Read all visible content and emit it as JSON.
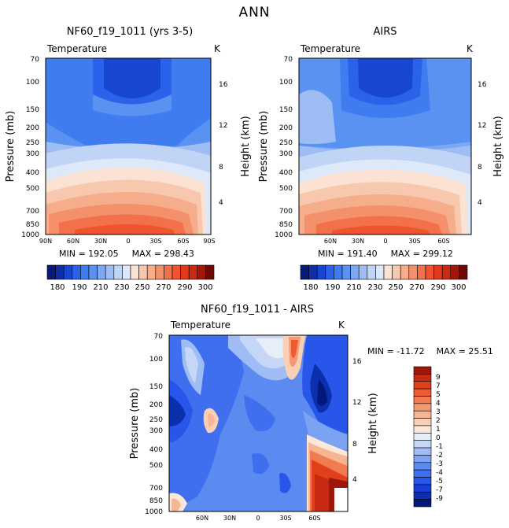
{
  "figure_title": "ANN",
  "colors": {
    "frame": "#000000",
    "temp_scale": [
      "#0a1a78",
      "#0f2fa8",
      "#1747d0",
      "#2a63ea",
      "#3f7cf0",
      "#5a92f2",
      "#7ba7f3",
      "#9dbdf4",
      "#c0d4f6",
      "#dde8f8",
      "#fbe2d2",
      "#f8c8ae",
      "#f6ad8c",
      "#f4906a",
      "#f2714b",
      "#ef5330",
      "#e3391c",
      "#c82b12",
      "#a0180a",
      "#6e0a05"
    ],
    "diff_scale": [
      "#03187a",
      "#0c2fae",
      "#173fd8",
      "#2856ea",
      "#3f6fee",
      "#5b8af0",
      "#7ca3f2",
      "#a0bcf4",
      "#c6d6f7",
      "#e6eef9",
      "#fce7d8",
      "#f9cfb5",
      "#f7b594",
      "#f49a73",
      "#f17c51",
      "#ee5b30",
      "#e0401b",
      "#c62b12",
      "#9e1609"
    ]
  },
  "chart_data": [
    {
      "type": "contour",
      "title": "NF60_f19_1011 (yrs 3-5)",
      "left_label": "Temperature",
      "right_label": "K",
      "ylabel": "Pressure (mb)",
      "y2label": "Height (km)",
      "xticks": [
        "90N",
        "60N",
        "30N",
        "0",
        "30S",
        "60S",
        "90S"
      ],
      "yticks": [
        "70",
        "100",
        "150",
        "200",
        "250",
        "300",
        "400",
        "500",
        "700",
        "850",
        "1000"
      ],
      "y2ticks": [
        "16",
        "12",
        "8",
        "4"
      ],
      "min_label": "MIN = 192.05",
      "max_label": "MAX = 298.43"
    },
    {
      "type": "contour",
      "title": "AIRS",
      "left_label": "Temperature",
      "right_label": "K",
      "ylabel": "Pressure (mb)",
      "y2label": "Height (km)",
      "xticks": [
        "60N",
        "30N",
        "0",
        "30S",
        "60S"
      ],
      "yticks": [
        "70",
        "100",
        "150",
        "200",
        "250",
        "300",
        "400",
        "500",
        "700",
        "850",
        "1000"
      ],
      "y2ticks": [
        "16",
        "12",
        "8",
        "4"
      ],
      "min_label": "MIN = 191.40",
      "max_label": "MAX = 299.12"
    },
    {
      "type": "contour",
      "title": "NF60_f19_1011 - AIRS",
      "left_label": "Temperature",
      "right_label": "K",
      "ylabel": "Pressure (mb)",
      "y2label": "Height (km)",
      "xticks": [
        "60N",
        "30N",
        "0",
        "30S",
        "60S"
      ],
      "yticks": [
        "70",
        "100",
        "150",
        "200",
        "250",
        "300",
        "400",
        "500",
        "700",
        "850",
        "1000"
      ],
      "y2ticks": [
        "16",
        "12",
        "8",
        "4"
      ],
      "min_label": "MIN = -11.72",
      "max_label": "MAX = 25.51"
    }
  ],
  "colorbar_temp": {
    "labels": [
      "180",
      "190",
      "210",
      "230",
      "250",
      "270",
      "290",
      "300"
    ]
  },
  "colorbar_diff": {
    "labels": [
      "9",
      "7",
      "5",
      "4",
      "3",
      "2",
      "1",
      "0",
      "-1",
      "-2",
      "-3",
      "-4",
      "-5",
      "-7",
      "-9"
    ]
  }
}
